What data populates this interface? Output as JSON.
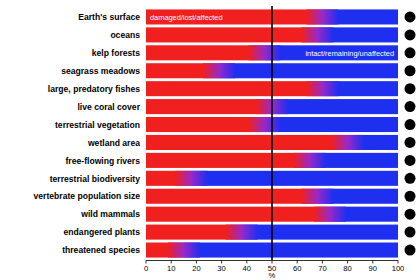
{
  "chart_data": {
    "type": "bar",
    "orientation": "horizontal",
    "stacked": true,
    "categories": [
      "Earth's surface",
      "oceans",
      "kelp forests",
      "seagrass meadows",
      "large, predatory fishes",
      "live coral cover",
      "terrestrial vegetation",
      "wetland area",
      "free-flowing rivers",
      "terrestrial biodiversity",
      "vertebrate population size",
      "wild mammals",
      "endangered plants",
      "threatened species"
    ],
    "series": [
      {
        "name": "damaged/lost/affected",
        "color": "#f0201e",
        "values": [
          70,
          68,
          47,
          29,
          70,
          50,
          47,
          80,
          65,
          18,
          68,
          73,
          38,
          15
        ]
      },
      {
        "name": "intact/remaining/unaffected",
        "color": "#1f2ff0",
        "values": [
          30,
          32,
          53,
          71,
          30,
          50,
          53,
          20,
          35,
          82,
          32,
          27,
          62,
          85
        ]
      }
    ],
    "xlabel": "%",
    "xlim": [
      0,
      100
    ],
    "xticks": [
      0,
      10,
      20,
      30,
      40,
      50,
      60,
      70,
      80,
      90,
      100
    ],
    "reference_line": 50,
    "grid": false
  }
}
